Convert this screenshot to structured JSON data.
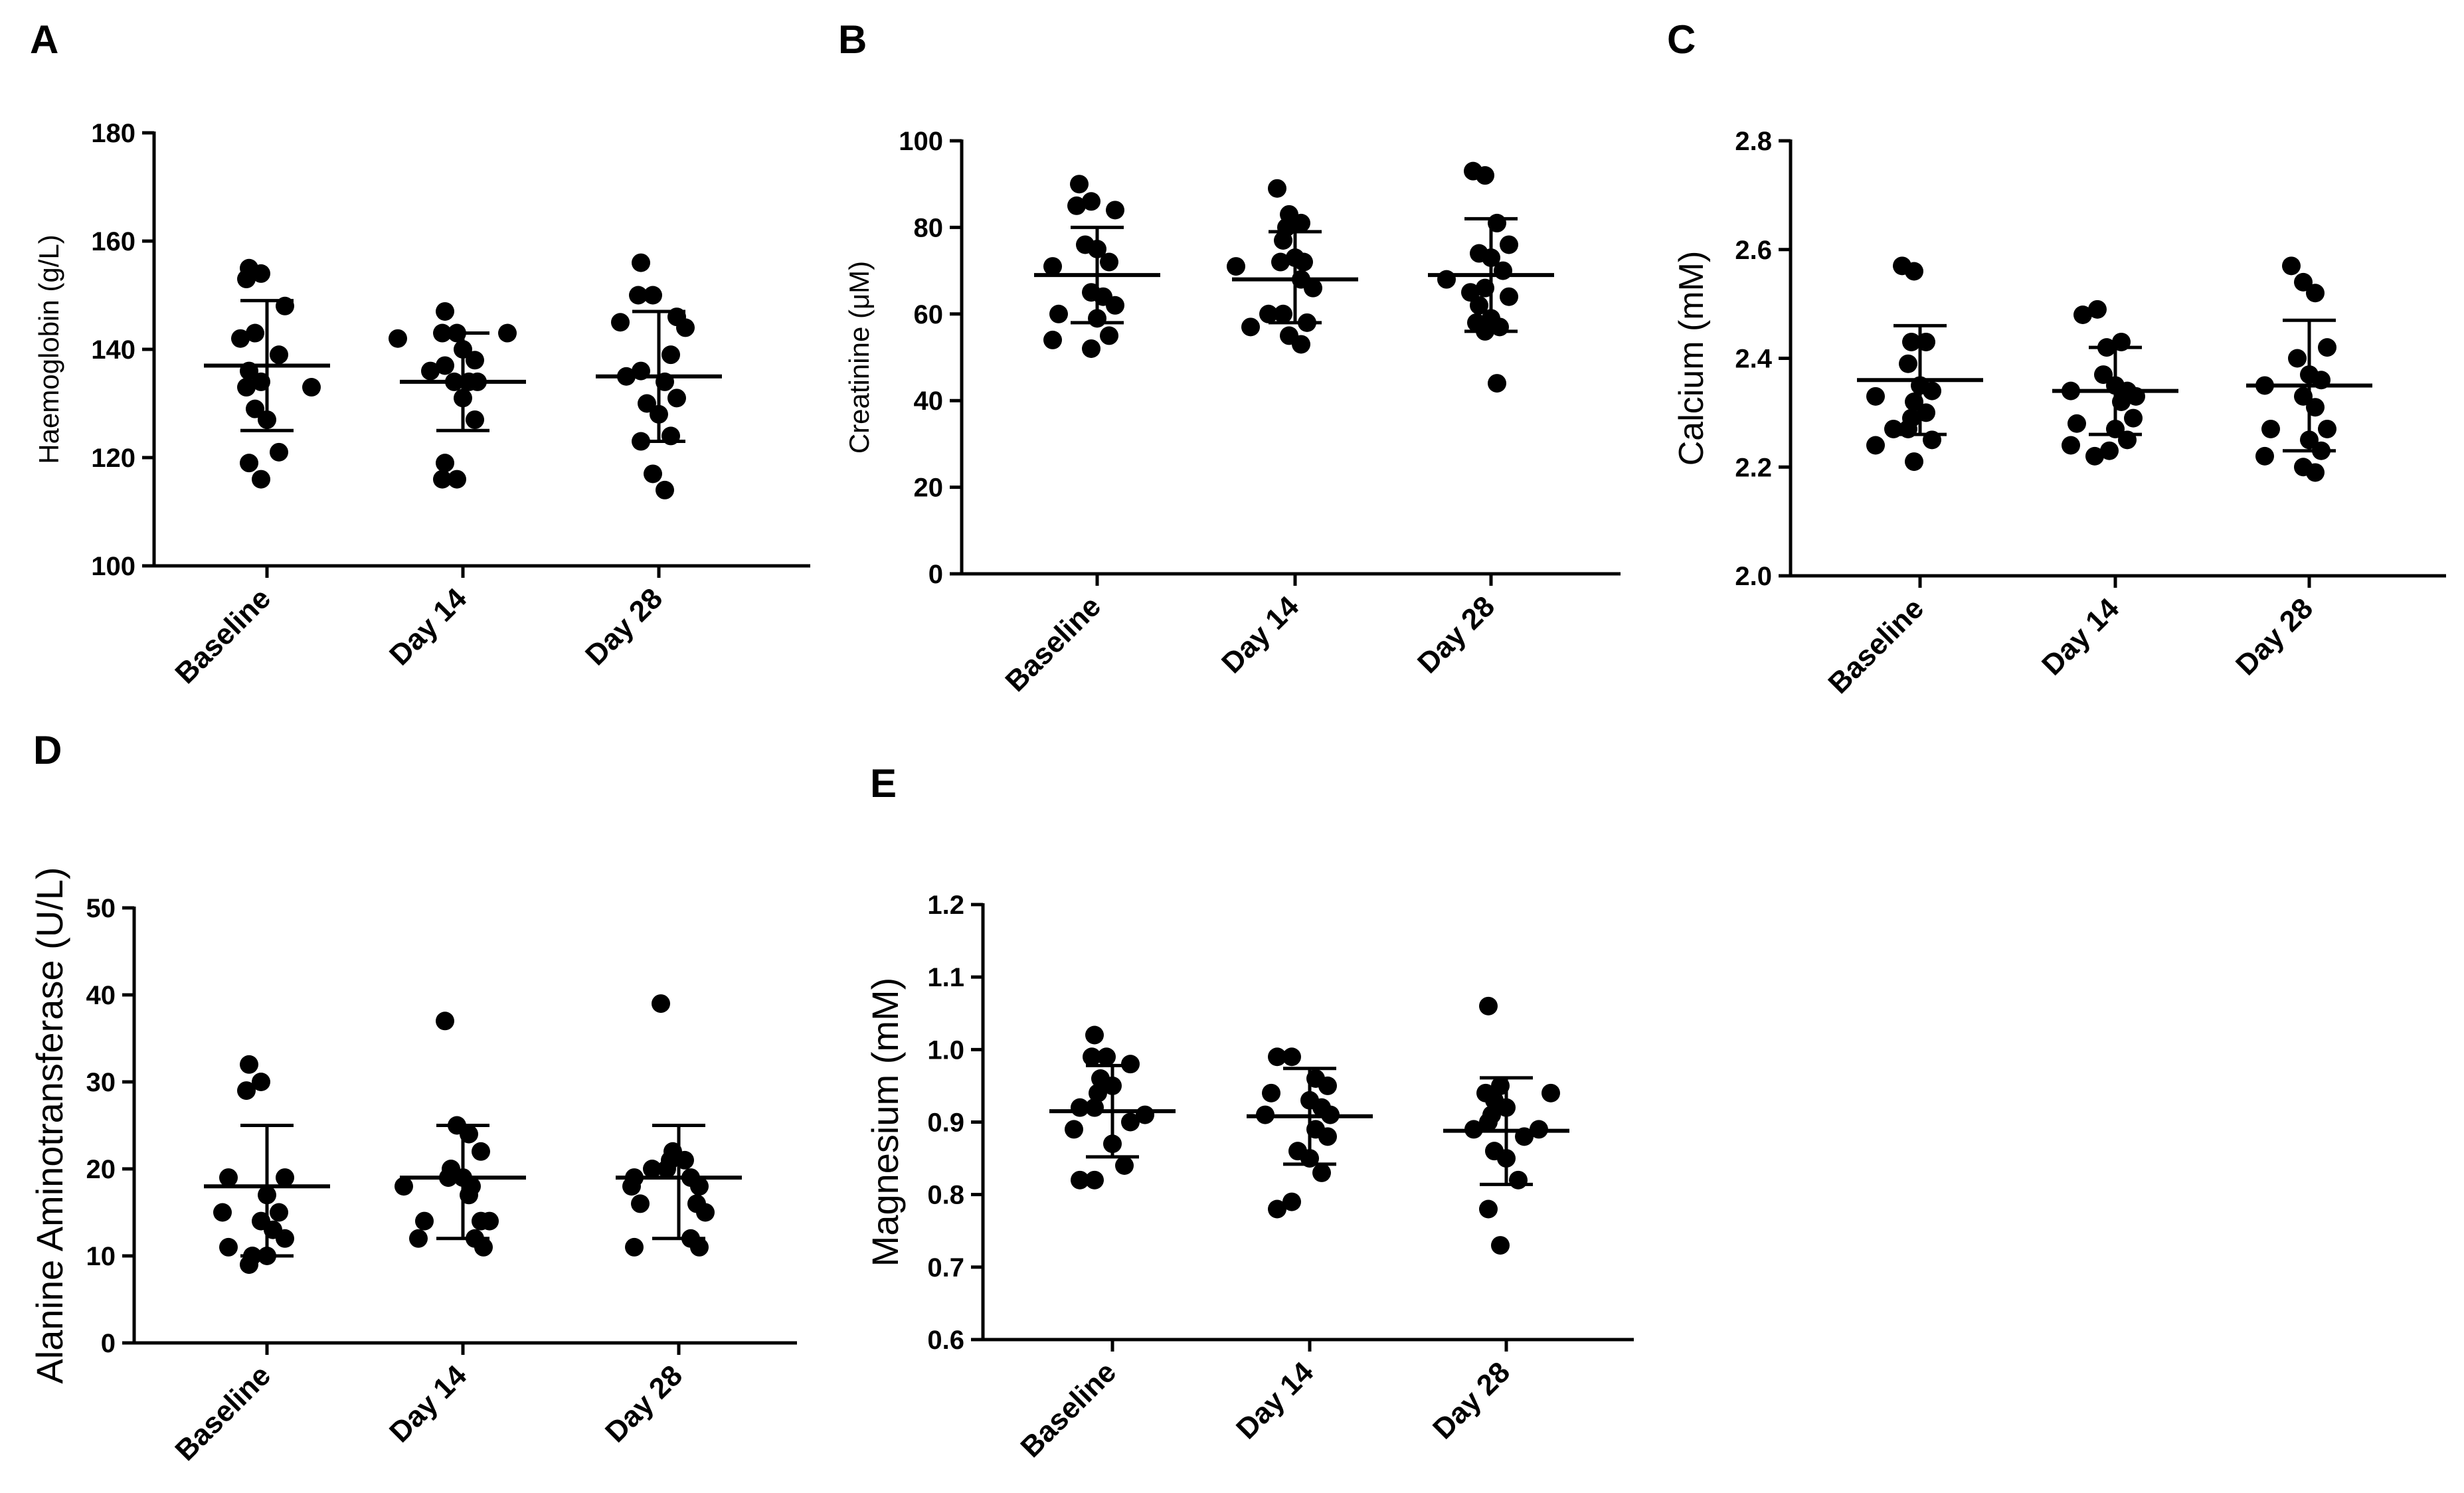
{
  "figure": {
    "panels": [
      "A",
      "B",
      "C",
      "D",
      "E"
    ]
  },
  "chart_data": [
    {
      "panel": "A",
      "type": "scatter",
      "ylabel": "Haemoglobin (g/L)",
      "ylim": [
        100,
        180
      ],
      "yticks": [
        100,
        120,
        140,
        160,
        180
      ],
      "categories": [
        "Baseline",
        "Day 14",
        "Day 28"
      ],
      "series": [
        {
          "name": "Baseline",
          "points": [
            155,
            154,
            153,
            148,
            143,
            142,
            139,
            136,
            134,
            133,
            133,
            129,
            127,
            121,
            119,
            116
          ],
          "mean": 137,
          "sd_low": 125,
          "sd_high": 149
        },
        {
          "name": "Day 14",
          "points": [
            147,
            143,
            143,
            143,
            142,
            140,
            138,
            137,
            136,
            134,
            134,
            134,
            131,
            127,
            119,
            116,
            116
          ],
          "mean": 134,
          "sd_low": 125,
          "sd_high": 143
        },
        {
          "name": "Day 28",
          "points": [
            156,
            150,
            150,
            146,
            145,
            144,
            139,
            136,
            135,
            134,
            131,
            130,
            128,
            124,
            123,
            117,
            114
          ],
          "mean": 135,
          "sd_low": 123,
          "sd_high": 147
        }
      ]
    },
    {
      "panel": "B",
      "type": "scatter",
      "ylabel": "Creatinine (μM)",
      "ylim": [
        0,
        100
      ],
      "yticks": [
        0,
        20,
        40,
        60,
        80,
        100
      ],
      "categories": [
        "Baseline",
        "Day 14",
        "Day 28"
      ],
      "series": [
        {
          "name": "Baseline",
          "points": [
            90,
            86,
            85,
            84,
            76,
            75,
            72,
            71,
            65,
            64,
            62,
            60,
            59,
            55,
            54,
            52
          ],
          "mean": 69,
          "sd_low": 58,
          "sd_high": 80
        },
        {
          "name": "Day 14",
          "points": [
            89,
            83,
            81,
            80,
            77,
            73,
            72,
            72,
            71,
            68,
            66,
            60,
            60,
            58,
            57,
            55,
            53
          ],
          "mean": 68,
          "sd_low": 58,
          "sd_high": 79
        },
        {
          "name": "Day 28",
          "points": [
            93,
            92,
            81,
            76,
            74,
            73,
            70,
            68,
            66,
            65,
            64,
            62,
            59,
            58,
            57,
            56,
            44
          ],
          "mean": 69,
          "sd_low": 56,
          "sd_high": 82
        }
      ]
    },
    {
      "panel": "C",
      "type": "scatter",
      "ylabel": "Calcium (mM)",
      "ylim": [
        2.0,
        2.8
      ],
      "yticks": [
        2.0,
        2.2,
        2.4,
        2.6,
        2.8
      ],
      "categories": [
        "Baseline",
        "Day 14",
        "Day 28"
      ],
      "series": [
        {
          "name": "Baseline",
          "points": [
            2.57,
            2.56,
            2.43,
            2.43,
            2.39,
            2.35,
            2.34,
            2.33,
            2.32,
            2.3,
            2.29,
            2.27,
            2.27,
            2.25,
            2.24,
            2.21
          ],
          "mean": 2.36,
          "sd_low": 2.26,
          "sd_high": 2.46
        },
        {
          "name": "Day 14",
          "points": [
            2.49,
            2.48,
            2.43,
            2.42,
            2.37,
            2.35,
            2.34,
            2.34,
            2.33,
            2.32,
            2.29,
            2.28,
            2.27,
            2.25,
            2.24,
            2.23,
            2.22
          ],
          "mean": 2.34,
          "sd_low": 2.26,
          "sd_high": 2.42
        },
        {
          "name": "Day 28",
          "points": [
            2.57,
            2.54,
            2.52,
            2.42,
            2.4,
            2.37,
            2.36,
            2.35,
            2.33,
            2.31,
            2.27,
            2.27,
            2.25,
            2.23,
            2.22,
            2.2,
            2.19
          ],
          "mean": 2.35,
          "sd_low": 2.23,
          "sd_high": 2.47
        }
      ]
    },
    {
      "panel": "D",
      "type": "scatter",
      "ylabel": "Alanine Aminotransferase (U/L)",
      "ylim": [
        0,
        50
      ],
      "yticks": [
        0,
        10,
        20,
        30,
        40,
        50
      ],
      "categories": [
        "Baseline",
        "Day 14",
        "Day 28"
      ],
      "series": [
        {
          "name": "Baseline",
          "points": [
            32,
            30,
            29,
            19,
            19,
            17,
            15,
            15,
            14,
            13,
            12,
            11,
            10,
            10,
            9
          ],
          "mean": 18,
          "sd_low": 10,
          "sd_high": 25
        },
        {
          "name": "Day 14",
          "points": [
            37,
            25,
            24,
            22,
            20,
            19,
            19,
            18,
            18,
            17,
            14,
            14,
            14,
            12,
            12,
            11
          ],
          "mean": 19,
          "sd_low": 12,
          "sd_high": 25
        },
        {
          "name": "Day 28",
          "points": [
            39,
            22,
            21,
            21,
            20,
            20,
            19,
            19,
            18,
            18,
            16,
            16,
            15,
            12,
            11,
            11
          ],
          "mean": 19,
          "sd_low": 12,
          "sd_high": 25
        }
      ]
    },
    {
      "panel": "E",
      "type": "scatter",
      "ylabel": "Magnesium (mM)",
      "ylim": [
        0.6,
        1.2
      ],
      "yticks": [
        0.6,
        0.7,
        0.8,
        0.9,
        1.0,
        1.1,
        1.2
      ],
      "categories": [
        "Baseline",
        "Day 14",
        "Day 28"
      ],
      "series": [
        {
          "name": "Baseline",
          "points": [
            1.02,
            0.99,
            0.99,
            0.98,
            0.96,
            0.95,
            0.94,
            0.92,
            0.92,
            0.91,
            0.9,
            0.89,
            0.87,
            0.84,
            0.82,
            0.82
          ],
          "mean": 0.915,
          "sd_low": 0.852,
          "sd_high": 0.978
        },
        {
          "name": "Day 14",
          "points": [
            0.99,
            0.99,
            0.96,
            0.95,
            0.94,
            0.93,
            0.92,
            0.91,
            0.91,
            0.89,
            0.88,
            0.86,
            0.85,
            0.83,
            0.79,
            0.78
          ],
          "mean": 0.908,
          "sd_low": 0.842,
          "sd_high": 0.974
        },
        {
          "name": "Day 28",
          "points": [
            1.06,
            0.95,
            0.94,
            0.94,
            0.93,
            0.92,
            0.91,
            0.9,
            0.89,
            0.89,
            0.88,
            0.86,
            0.85,
            0.82,
            0.78,
            0.73
          ],
          "mean": 0.888,
          "sd_low": 0.814,
          "sd_high": 0.961
        }
      ]
    }
  ]
}
